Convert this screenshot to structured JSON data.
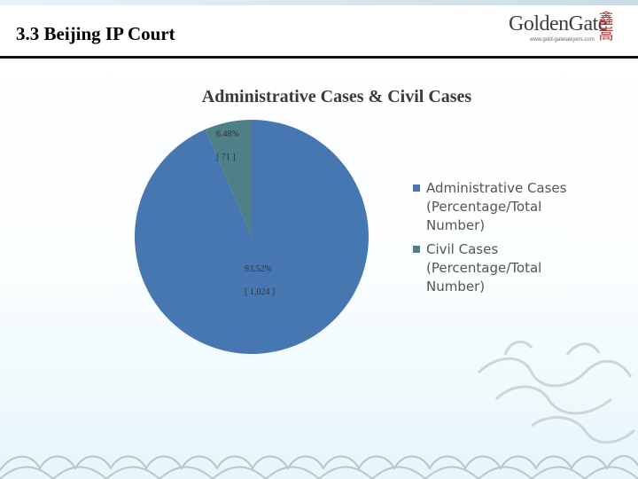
{
  "header": {
    "title": "3.3  Beijing IP Court",
    "logo_text": "GoldenGate",
    "logo_url_text": "www.gold-gatelawyers.com",
    "logo_mark": [
      "鑫",
      "嵩"
    ]
  },
  "colors": {
    "administrative": "#4677b0",
    "civil": "#4f8088",
    "rule": "#111111"
  },
  "chart_data": {
    "type": "pie",
    "title": "Administrative Cases & Civil Cases",
    "legend_position": "right",
    "series": [
      {
        "name": "Administrative Cases (Percentage/Total Number)",
        "value": 1024,
        "percent_label": "93.52%",
        "count_label": "[ 1,024 ]",
        "color": "#4677b0"
      },
      {
        "name": "Civil Cases (Percentage/Total Number)",
        "value": 71,
        "percent_label": "6.48%",
        "count_label": "[ 71 ]",
        "color": "#4f8088"
      }
    ]
  },
  "legend": [
    {
      "text": "Administrative Cases\n(Percentage/Total\nNumber)",
      "color": "#4677b0"
    },
    {
      "text": "Civil Cases\n(Percentage/Total\nNumber)",
      "color": "#4f8088"
    }
  ]
}
